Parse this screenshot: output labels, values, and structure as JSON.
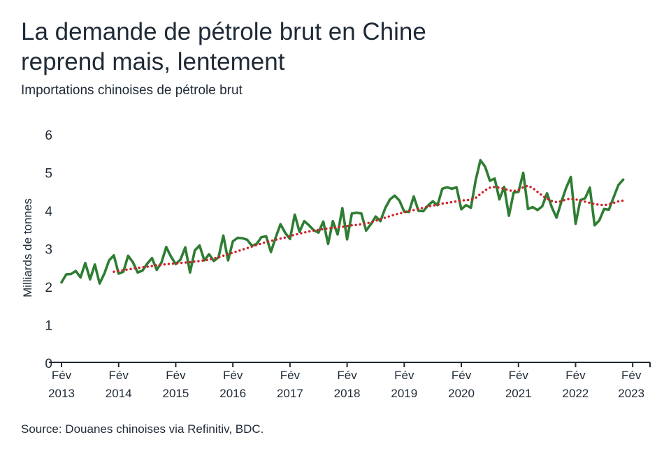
{
  "title_line1": "La demande de pétrole brut en Chine",
  "title_line2": "reprend mais, lentement",
  "subtitle": "Importations chinoises de pétrole brut",
  "source": "Source: Douanes chinoises via Refinitiv, BDC.",
  "colors": {
    "monthly": "#2e7d32",
    "trend": "#d0202a",
    "text": "#1f2a36",
    "axis": "#1f2a36"
  },
  "chart_data": {
    "type": "line",
    "ylabel": "Milliards de tonnes",
    "ylim": [
      0,
      6
    ],
    "yticks": [
      0,
      1,
      2,
      3,
      4,
      5,
      6
    ],
    "xlim": [
      0,
      121
    ],
    "xticks": [
      {
        "month": "Fév",
        "year": "2013",
        "x": 0
      },
      {
        "month": "Fév",
        "year": "2014",
        "x": 12
      },
      {
        "month": "Fév",
        "year": "2015",
        "x": 24
      },
      {
        "month": "Fév",
        "year": "2016",
        "x": 36
      },
      {
        "month": "Fév",
        "year": "2017",
        "x": 48
      },
      {
        "month": "Fév",
        "year": "2018",
        "x": 60
      },
      {
        "month": "Fév",
        "year": "2019",
        "x": 72
      },
      {
        "month": "Fév",
        "year": "2020",
        "x": 84
      },
      {
        "month": "Fév",
        "year": "2021",
        "x": 96
      },
      {
        "month": "Fév",
        "year": "2022",
        "x": 108
      },
      {
        "month": "Fév",
        "year": "2023",
        "x": 120
      }
    ],
    "series": [
      {
        "style": "solid",
        "x_start": 0,
        "values": [
          2.12,
          2.33,
          2.34,
          2.42,
          2.25,
          2.63,
          2.2,
          2.59,
          2.09,
          2.35,
          2.7,
          2.83,
          2.35,
          2.4,
          2.82,
          2.65,
          2.38,
          2.43,
          2.61,
          2.76,
          2.45,
          2.64,
          3.05,
          2.8,
          2.6,
          2.72,
          3.04,
          2.38,
          2.96,
          3.09,
          2.7,
          2.86,
          2.68,
          2.78,
          3.35,
          2.7,
          3.2,
          3.29,
          3.28,
          3.24,
          3.08,
          3.13,
          3.31,
          3.33,
          2.92,
          3.3,
          3.65,
          3.42,
          3.26,
          3.9,
          3.45,
          3.73,
          3.62,
          3.49,
          3.43,
          3.72,
          3.13,
          3.73,
          3.38,
          4.07,
          3.25,
          3.93,
          3.95,
          3.93,
          3.48,
          3.65,
          3.85,
          3.73,
          4.07,
          4.3,
          4.4,
          4.27,
          3.98,
          3.97,
          4.38,
          4.0,
          3.99,
          4.14,
          4.25,
          4.15,
          4.58,
          4.62,
          4.58,
          4.62,
          4.04,
          4.15,
          4.08,
          4.8,
          5.33,
          5.16,
          4.79,
          4.85,
          4.3,
          4.63,
          3.87,
          4.48,
          4.5,
          5.0,
          4.05,
          4.1,
          4.02,
          4.12,
          4.46,
          4.1,
          3.82,
          4.23,
          4.6,
          4.89,
          3.66,
          4.28,
          4.33,
          4.61,
          3.62,
          3.75,
          4.05,
          4.03,
          4.36,
          4.68,
          4.82
        ]
      },
      {
        "style": "dotted",
        "x_start": 11,
        "values": [
          2.4,
          2.42,
          2.44,
          2.46,
          2.48,
          2.5,
          2.52,
          2.53,
          2.55,
          2.57,
          2.58,
          2.6,
          2.61,
          2.62,
          2.63,
          2.64,
          2.65,
          2.67,
          2.68,
          2.7,
          2.72,
          2.75,
          2.78,
          2.82,
          2.86,
          2.9,
          2.94,
          2.98,
          3.02,
          3.06,
          3.1,
          3.14,
          3.18,
          3.21,
          3.24,
          3.27,
          3.3,
          3.34,
          3.37,
          3.4,
          3.43,
          3.46,
          3.48,
          3.5,
          3.52,
          3.54,
          3.55,
          3.57,
          3.58,
          3.6,
          3.62,
          3.63,
          3.65,
          3.67,
          3.7,
          3.74,
          3.78,
          3.82,
          3.86,
          3.9,
          3.93,
          3.96,
          3.99,
          4.02,
          4.05,
          4.08,
          4.11,
          4.14,
          4.16,
          4.19,
          4.21,
          4.23,
          4.25,
          4.27,
          4.28,
          4.29,
          4.34,
          4.44,
          4.54,
          4.61,
          4.63,
          4.61,
          4.58,
          4.54,
          4.52,
          4.55,
          4.62,
          4.66,
          4.6,
          4.5,
          4.4,
          4.32,
          4.26,
          4.23,
          4.25,
          4.3,
          4.32,
          4.3,
          4.27,
          4.24,
          4.21,
          4.18,
          4.16,
          4.15,
          4.17,
          4.21,
          4.25,
          4.27
        ]
      }
    ]
  }
}
